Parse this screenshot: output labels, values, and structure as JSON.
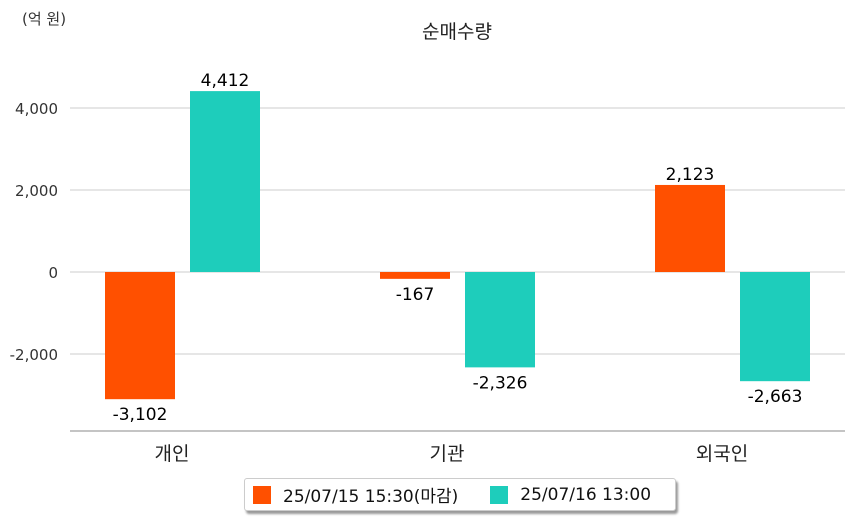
{
  "chart_data": {
    "type": "bar",
    "title": "순매수량",
    "unit_label": "(억 원)",
    "categories": [
      "개인",
      "기관",
      "외국인"
    ],
    "series": [
      {
        "name": "25/07/15 15:30(마감)",
        "color": "#ff5000",
        "values": [
          -3102,
          -167,
          2123
        ],
        "labels": [
          "-3,102",
          "-167",
          "2,123"
        ]
      },
      {
        "name": "25/07/16 13:00",
        "color": "#1ecdbb",
        "values": [
          4412,
          -2326,
          -2663
        ],
        "labels": [
          "4,412",
          "-2,326",
          "-2,663"
        ]
      }
    ],
    "yticks": [
      -2000,
      0,
      2000,
      4000
    ],
    "ytick_labels": [
      "-2,000",
      "0",
      "2,000",
      "4,000"
    ],
    "ylim": [
      -3878,
      5000
    ],
    "grid": true,
    "legend_position": "bottom"
  }
}
